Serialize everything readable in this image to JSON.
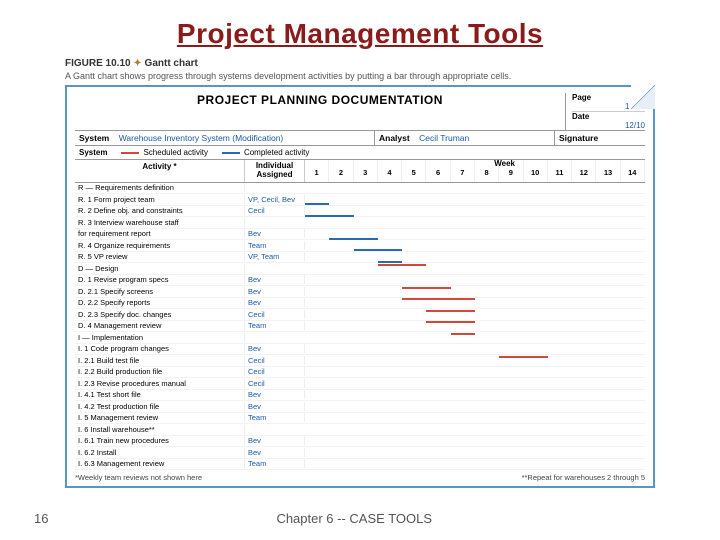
{
  "slide": {
    "title": "Project Management Tools",
    "pageNumber": "16",
    "chapter": "Chapter 6 -- CASE TOOLS"
  },
  "figure": {
    "label_prefix": "FIGURE 10.10",
    "label_suffix": "Gantt chart",
    "caption": "A Gantt chart shows progress through systems development activities by putting a bar through appropriate cells.",
    "doc_title": "PROJECT PLANNING DOCUMENTATION",
    "page_info": {
      "label": "Page",
      "value": "1 of 1"
    },
    "date_info": {
      "label": "Date",
      "value": "12/10"
    },
    "system": {
      "label": "System",
      "value": "Warehouse Inventory System (Modification)"
    },
    "analyst": {
      "label": "Analyst",
      "value": "Cecil Truman"
    },
    "signature_label": "Signature",
    "legend": {
      "scheduled": {
        "label": "Scheduled activity",
        "color": "#d04a3a"
      },
      "completed": {
        "label": "Completed activity",
        "color": "#2a6ab0"
      }
    },
    "columns": {
      "activity": "Activity *",
      "assigned": "Individual Assigned",
      "week": "Week"
    },
    "weeks": [
      "1",
      "2",
      "3",
      "4",
      "5",
      "6",
      "7",
      "8",
      "9",
      "10",
      "11",
      "12",
      "13",
      "14"
    ],
    "colors": {
      "scheduled": "#d04a3a",
      "completed": "#2a6ab0",
      "border": "#5a95c7",
      "grid": "#eeeeee"
    },
    "footnote_left": "*Weekly team reviews not shown here",
    "footnote_right": "**Repeat for warehouses 2 through 5",
    "rows": [
      {
        "label": "R — Requirements definition",
        "assigned": "",
        "section": true
      },
      {
        "label": "R. 1 Form project team",
        "assigned": "VP, Cecil, Bev",
        "bars": [
          {
            "s": 1,
            "e": 1,
            "t": "c"
          }
        ]
      },
      {
        "label": "R. 2 Define obj. and constraints",
        "assigned": "Cecil",
        "bars": [
          {
            "s": 1,
            "e": 2,
            "t": "c"
          }
        ]
      },
      {
        "label": "R. 3 Interview warehouse staff",
        "assigned": "",
        "bars": []
      },
      {
        "label": "      for requirement report",
        "assigned": "Bev",
        "bars": [
          {
            "s": 2,
            "e": 3,
            "t": "c"
          }
        ]
      },
      {
        "label": "R. 4 Organize requirements",
        "assigned": "Team",
        "bars": [
          {
            "s": 3,
            "e": 4,
            "t": "c"
          }
        ]
      },
      {
        "label": "R. 5 VP review",
        "assigned": "VP, Team",
        "bars": [
          {
            "s": 4,
            "e": 4,
            "t": "c"
          },
          {
            "s": 4,
            "e": 5,
            "t": "s"
          }
        ]
      },
      {
        "label": "D — Design",
        "assigned": "",
        "section": true
      },
      {
        "label": "D. 1 Revise program specs",
        "assigned": "Bev",
        "bars": [
          {
            "s": 5,
            "e": 6,
            "t": "s"
          }
        ]
      },
      {
        "label": "D. 2.1 Specify screens",
        "assigned": "Bev",
        "bars": [
          {
            "s": 5,
            "e": 7,
            "t": "s"
          }
        ]
      },
      {
        "label": "D. 2.2 Specify reports",
        "assigned": "Bev",
        "bars": [
          {
            "s": 6,
            "e": 7,
            "t": "s"
          }
        ]
      },
      {
        "label": "D. 2.3 Specify doc. changes",
        "assigned": "Cecil",
        "bars": [
          {
            "s": 6,
            "e": 7,
            "t": "s"
          }
        ]
      },
      {
        "label": "D. 4 Management review",
        "assigned": "Team",
        "bars": [
          {
            "s": 7,
            "e": 7,
            "t": "s"
          }
        ]
      },
      {
        "label": "I — Implementation",
        "assigned": "",
        "section": true
      },
      {
        "label": "I. 1 Code program changes",
        "assigned": "Bev",
        "bars": [
          {
            "s": 9,
            "e": 10,
            "t": "s"
          }
        ]
      },
      {
        "label": "I. 2.1 Build test file",
        "assigned": "Cecil",
        "bars": []
      },
      {
        "label": "I. 2.2 Build production file",
        "assigned": "Cecil",
        "bars": []
      },
      {
        "label": "I. 2.3 Revise procedures manual",
        "assigned": "Cecil",
        "bars": []
      },
      {
        "label": "I. 4.1 Test short file",
        "assigned": "Bev",
        "bars": []
      },
      {
        "label": "I. 4.2 Test production file",
        "assigned": "Bev",
        "bars": []
      },
      {
        "label": "I. 5 Management review",
        "assigned": "Team",
        "bars": []
      },
      {
        "label": "I. 6 Install warehouse**",
        "assigned": "",
        "bars": []
      },
      {
        "label": "I. 6.1 Train new procedures",
        "assigned": "Bev",
        "bars": []
      },
      {
        "label": "I. 6.2 Install",
        "assigned": "Bev",
        "bars": []
      },
      {
        "label": "I. 6.3 Management review",
        "assigned": "Team",
        "bars": []
      }
    ]
  }
}
